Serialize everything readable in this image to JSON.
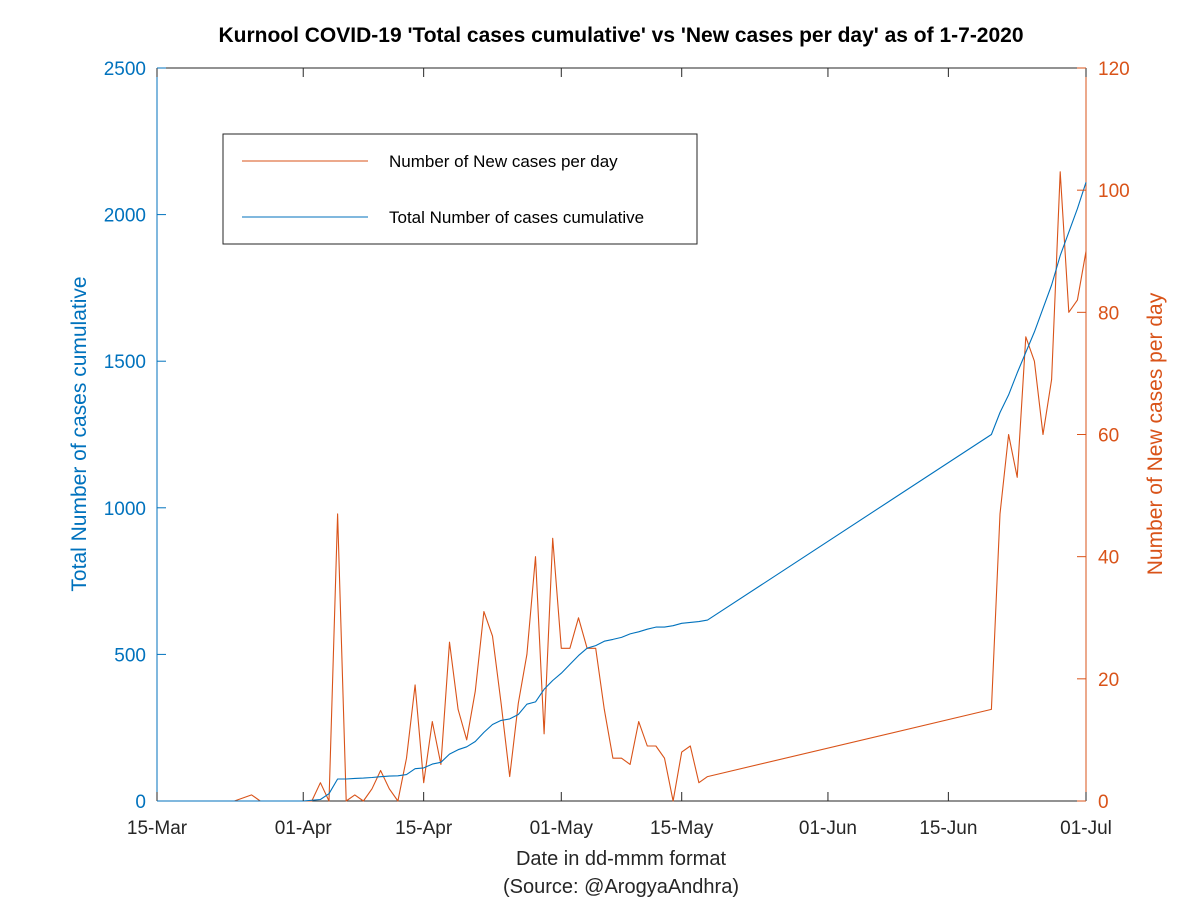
{
  "colors": {
    "left_axis": "#0072BD",
    "right_axis": "#D95319",
    "axis": "#262626",
    "text": "#000000"
  },
  "chart_data": {
    "type": "line",
    "title": "Kurnool COVID-19 'Total cases cumulative' vs 'New cases per day' as of 1-7-2020",
    "xlabel": "Date in dd-mmm format",
    "xlabel_source": "(Source: @ArogyaAndhra)",
    "ylabel_left": "Total Number of cases cumulative",
    "ylabel_right": "Number of New cases per day",
    "xlim": [
      "2020-03-15",
      "2020-07-01"
    ],
    "x_ticks": [
      {
        "date": "2020-03-15",
        "label": "15-Mar"
      },
      {
        "date": "2020-04-01",
        "label": "01-Apr"
      },
      {
        "date": "2020-04-15",
        "label": "15-Apr"
      },
      {
        "date": "2020-05-01",
        "label": "01-May"
      },
      {
        "date": "2020-05-15",
        "label": "15-May"
      },
      {
        "date": "2020-06-01",
        "label": "01-Jun"
      },
      {
        "date": "2020-06-15",
        "label": "15-Jun"
      },
      {
        "date": "2020-07-01",
        "label": "01-Jul"
      }
    ],
    "ylim_left": [
      0,
      2500
    ],
    "yticks_left": [
      "0",
      "500",
      "1000",
      "1500",
      "2000",
      "2500"
    ],
    "ylim_right": [
      0,
      120
    ],
    "yticks_right": [
      "0",
      "20",
      "40",
      "60",
      "80",
      "100",
      "120"
    ],
    "legend": {
      "location": "top-left"
    },
    "series": [
      {
        "name": "Number of New cases per day",
        "axis": "right",
        "color": "#D95319",
        "x": [
          "2020-03-24",
          "2020-03-26",
          "2020-03-27",
          "2020-03-28",
          "2020-03-30",
          "2020-03-31",
          "2020-04-01",
          "2020-04-02",
          "2020-04-03",
          "2020-04-04",
          "2020-04-05",
          "2020-04-06",
          "2020-04-07",
          "2020-04-08",
          "2020-04-09",
          "2020-04-10",
          "2020-04-11",
          "2020-04-12",
          "2020-04-13",
          "2020-04-14",
          "2020-04-15",
          "2020-04-16",
          "2020-04-17",
          "2020-04-18",
          "2020-04-19",
          "2020-04-20",
          "2020-04-21",
          "2020-04-22",
          "2020-04-23",
          "2020-04-24",
          "2020-04-25",
          "2020-04-26",
          "2020-04-27",
          "2020-04-28",
          "2020-04-29",
          "2020-04-30",
          "2020-05-01",
          "2020-05-02",
          "2020-05-03",
          "2020-05-04",
          "2020-05-05",
          "2020-05-06",
          "2020-05-07",
          "2020-05-08",
          "2020-05-09",
          "2020-05-10",
          "2020-05-11",
          "2020-05-12",
          "2020-05-13",
          "2020-05-14",
          "2020-05-15",
          "2020-05-16",
          "2020-05-17",
          "2020-05-18",
          "2020-06-20",
          "2020-06-21",
          "2020-06-22",
          "2020-06-23",
          "2020-06-24",
          "2020-06-25",
          "2020-06-26",
          "2020-06-27",
          "2020-06-28",
          "2020-06-29",
          "2020-06-30",
          "2020-07-01"
        ],
        "values": [
          0,
          1,
          0,
          0,
          0,
          0,
          0,
          0,
          3,
          0,
          47,
          0,
          1,
          0,
          2,
          5,
          2,
          0,
          7,
          19,
          3,
          13,
          6,
          26,
          15,
          10,
          18,
          31,
          27,
          16,
          4,
          16,
          24,
          40,
          11,
          43,
          25,
          25,
          30,
          25,
          25,
          15,
          7,
          7,
          6,
          13,
          9,
          9,
          7,
          0,
          8,
          9,
          3,
          4,
          15,
          47,
          60,
          53,
          76,
          72,
          60,
          69,
          103,
          80,
          82,
          90
        ]
      },
      {
        "name": "Total Number of cases cumulative",
        "axis": "left",
        "color": "#0072BD",
        "x": [
          "2020-03-15",
          "2020-03-24",
          "2020-03-31",
          "2020-04-01",
          "2020-04-03",
          "2020-04-04",
          "2020-04-05",
          "2020-04-06",
          "2020-04-07",
          "2020-04-08",
          "2020-04-09",
          "2020-04-10",
          "2020-04-11",
          "2020-04-12",
          "2020-04-13",
          "2020-04-14",
          "2020-04-15",
          "2020-04-16",
          "2020-04-17",
          "2020-04-18",
          "2020-04-19",
          "2020-04-20",
          "2020-04-21",
          "2020-04-22",
          "2020-04-23",
          "2020-04-24",
          "2020-04-25",
          "2020-04-26",
          "2020-04-27",
          "2020-04-28",
          "2020-04-29",
          "2020-04-30",
          "2020-05-01",
          "2020-05-02",
          "2020-05-03",
          "2020-05-04",
          "2020-05-05",
          "2020-05-06",
          "2020-05-07",
          "2020-05-08",
          "2020-05-09",
          "2020-05-10",
          "2020-05-11",
          "2020-05-12",
          "2020-05-13",
          "2020-05-14",
          "2020-05-15",
          "2020-05-16",
          "2020-05-17",
          "2020-05-18",
          "2020-06-20",
          "2020-06-21",
          "2020-06-22",
          "2020-06-23",
          "2020-06-24",
          "2020-06-25",
          "2020-06-26",
          "2020-06-27",
          "2020-06-28",
          "2020-06-29",
          "2020-06-30",
          "2020-07-01"
        ],
        "values": [
          0,
          0,
          0,
          0,
          5,
          25,
          75,
          75,
          77,
          78,
          80,
          83,
          85,
          86,
          90,
          110,
          113,
          126,
          132,
          160,
          175,
          185,
          203,
          234,
          261,
          275,
          280,
          295,
          330,
          338,
          381,
          411,
          436,
          466,
          496,
          521,
          530,
          545,
          551,
          558,
          570,
          577,
          586,
          593,
          593,
          598,
          606,
          609,
          612,
          617,
          1250,
          1325,
          1385,
          1460,
          1530,
          1600,
          1680,
          1760,
          1860,
          1940,
          2020,
          2110
        ]
      }
    ]
  }
}
